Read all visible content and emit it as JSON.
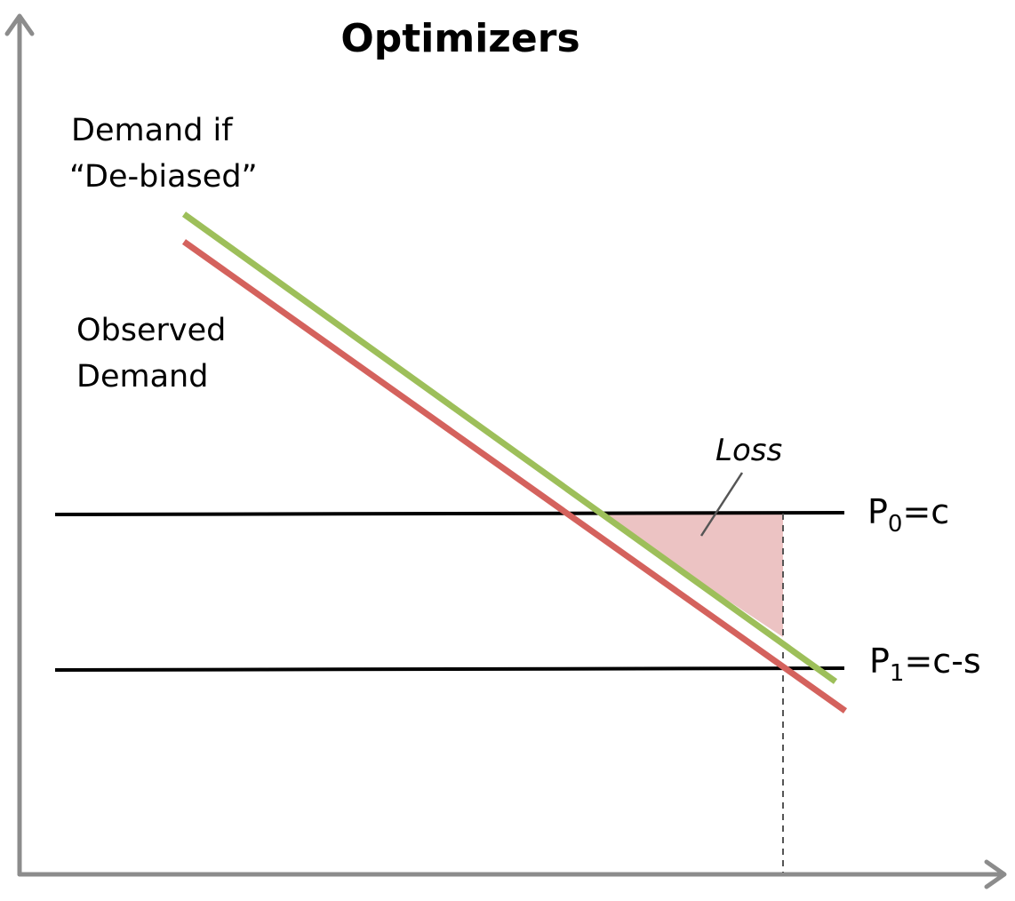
{
  "title": "Optimizers",
  "labels": {
    "debiased_line1": "Demand if",
    "debiased_line2": "“De-biased”",
    "observed_line1": "Observed",
    "observed_line2": "Demand",
    "loss": "Loss"
  },
  "price_lines": {
    "p0": {
      "symbol": "P",
      "subscript": "0",
      "rest": "=c"
    },
    "p1": {
      "symbol": "P",
      "subscript": "1",
      "rest": "=c-s"
    }
  },
  "colors": {
    "axis": "#8c8c8c",
    "debiased_demand": "#9dbf5a",
    "observed_demand": "#d4625d",
    "loss_fill": "#ecc3c3",
    "price_line": "#000000",
    "dashed_line": "#555555"
  }
}
